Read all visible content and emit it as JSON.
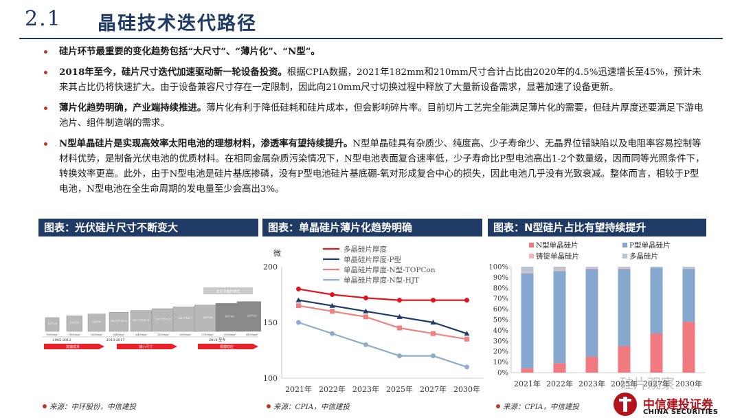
{
  "header": {
    "number": "2.1",
    "title": "晶硅技术迭代路径"
  },
  "bullets": [
    {
      "bold": "硅片环节最重要的变化趋势包括“大尺寸”、“薄片化”、“N型”。",
      "text": ""
    },
    {
      "bold": "2018年至今，硅片尺寸迭代加速驱动新一轮设备投资。",
      "text": "根据CPIA数据，2021年182mm和210mm尺寸合计占比由2020年的4.5%迅速增长至45%，预计未来其占比仍将快速扩大。由于设备兼容尺寸存在一定限制，因此向210mm尺寸切换过程中释放了大量新设备需求，显著加速了设备更新。"
    },
    {
      "bold": "薄片化趋势明确，产业端持续推进。",
      "text": "薄片化有利于降低硅耗和硅片成本，但会影响碎片率。目前切片工艺完全能满足薄片化的需要，但硅片厚度还要满足下游电池片、组件制造端的需求。"
    },
    {
      "bold": "N型单晶硅片是实现高效率太阳电池的理想材料，渗透率有望持续提升。",
      "text": "N型单晶硅具有杂质少、纯度高、少子寿命少、无晶界位错缺陷以及电阻率容易控制等材料优势，是制备光伏电池的优质材料。在相同金属杂质污染情况下，N型电池表面复合速率低，少子寿命比P型电池高出1-2个数量级，因而同等光照条件下，转换效率更高。此外，由于N型电池是硅片基底掺磷，没有P型电池硅片基底硼-氧对形成复合中心的损失，因此电池几乎没有光致衰减。整体而言，相较于P型电池，N型电池在全生命周期的发电量至少会高出3%。"
    }
  ],
  "panels": [
    {
      "title": "图表：光伏硅片尺寸不断变大",
      "source": "来源：中环股份，中信建投"
    },
    {
      "title": "图表：单晶硅片薄片化趋势明确",
      "source": "来源：CPIA，中信建投"
    },
    {
      "title": "图表：N型硅片占比有望持续提升",
      "source": "来源：CPIA，中信建投"
    }
  ],
  "wafer_figure": {
    "wafers": [
      {
        "label": "125*125",
        "sub": "15600mm²"
      },
      {
        "label": "125*125",
        "sub": "15600mm²"
      },
      {
        "label": "156*156",
        "sub": "24300mm²"
      },
      {
        "label": "156.75*156.75",
        "sub": "24400mm²"
      },
      {
        "label": "156.75*156.75",
        "sub": "24400mm²"
      },
      {
        "label": "156.75*156.75",
        "sub": "24500mm²"
      },
      {
        "label": "161.7*161.7",
        "sub": "26000mm²"
      },
      {
        "label": "166*166",
        "sub": "27400mm²"
      },
      {
        "label": "182*182",
        "sub": "33000mm²"
      },
      {
        "label": "210*210",
        "sub": "44100mm²"
      }
    ],
    "eras": [
      "1985-2012",
      "2013-2017",
      "2018 至今"
    ],
    "top_note": "大尺寸硅片时代",
    "arrows": [
      "加速成本",
      "减小尺寸",
      "规模效应"
    ]
  },
  "chart_data": [
    {
      "type": "line",
      "title": "单晶硅片薄片化趋势明确",
      "ylabel": "微",
      "categories": [
        "2021年",
        "2022年",
        "2023年",
        "2025年",
        "2027年",
        "2030年"
      ],
      "ylim": [
        100,
        200
      ],
      "yticks": [
        100,
        150,
        200
      ],
      "series": [
        {
          "name": "多晶硅片厚度",
          "color": "#e0161f",
          "values": [
            180,
            175,
            172,
            170,
            170,
            170
          ]
        },
        {
          "name": "单晶硅片厚度-P型",
          "color": "#1f3a64",
          "values": [
            170,
            165,
            160,
            155,
            150,
            140
          ]
        },
        {
          "name": "单晶硅片厚度-N型-TOPCon",
          "color": "#f08080",
          "values": [
            165,
            160,
            155,
            145,
            140,
            135
          ]
        },
        {
          "name": "单晶硅片厚度-N型-HJT",
          "color": "#8fadc8",
          "values": [
            150,
            140,
            130,
            120,
            120,
            110
          ]
        }
      ]
    },
    {
      "type": "bar",
      "stacked": true,
      "title": "N型硅片占比有望持续提升",
      "categories": [
        "2021年",
        "2022年",
        "2023年",
        "2025年",
        "2027年",
        "2030年"
      ],
      "ylim": [
        0,
        100
      ],
      "yticks": [
        "0%",
        "10%",
        "20%",
        "30%",
        "40%",
        "50%",
        "60%",
        "70%",
        "80%",
        "90%",
        "100%"
      ],
      "series": [
        {
          "name": "N型单晶硅片",
          "color": "#f07a80",
          "values": [
            4,
            9,
            15,
            25,
            37,
            48
          ]
        },
        {
          "name": "P型单晶硅片",
          "color": "#86a8cf",
          "values": [
            90,
            87,
            83,
            73,
            62,
            50
          ]
        },
        {
          "name": "铸锭单晶硅片",
          "color": "#f4b5b8",
          "values": [
            1,
            1,
            1,
            1,
            0,
            0
          ]
        },
        {
          "name": "多晶硅片",
          "color": "#b8c4d0",
          "values": [
            5,
            3,
            1,
            1,
            1,
            2
          ]
        }
      ]
    }
  ],
  "brand": {
    "cn": "中信建投证券",
    "en": "CHINA SECURITIES",
    "watermark": "硅片观察"
  }
}
